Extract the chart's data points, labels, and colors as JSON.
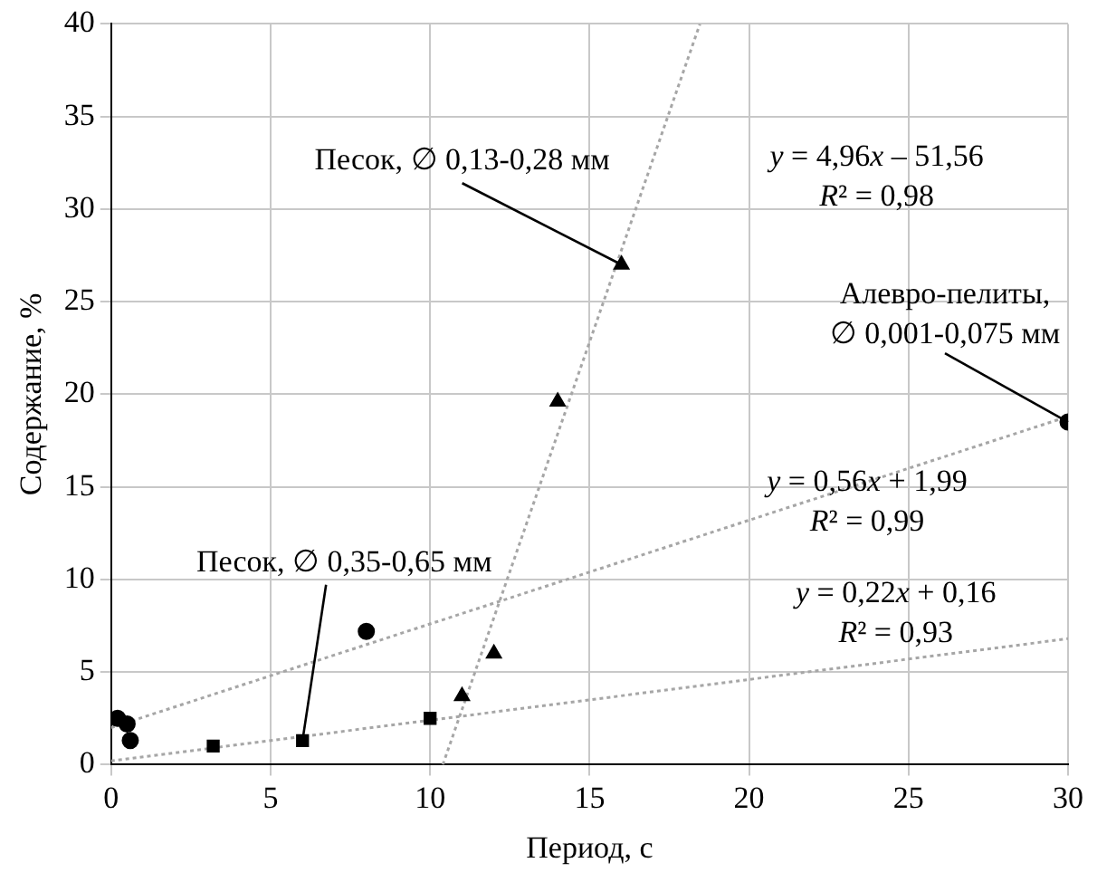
{
  "chart_data": {
    "type": "scatter",
    "xlabel": "Период, с",
    "ylabel": "Содержание, %",
    "xlim": [
      0,
      30
    ],
    "xticks": [
      0,
      5,
      10,
      15,
      20,
      25,
      30
    ],
    "ylim": [
      0,
      40
    ],
    "yticks": [
      0,
      5,
      10,
      15,
      20,
      25,
      30,
      35,
      40
    ],
    "grid": true,
    "legend": false,
    "series": [
      {
        "type": "scatter",
        "marker": "circle",
        "color": "#000000",
        "x": [
          0.2,
          0.5,
          0.6,
          8,
          30
        ],
        "values": [
          2.5,
          2.2,
          1.3,
          7.2,
          18.5
        ]
      },
      {
        "type": "scatter",
        "marker": "square",
        "color": "#000000",
        "x": [
          3.2,
          6,
          10
        ],
        "values": [
          1.0,
          1.3,
          2.5
        ]
      },
      {
        "type": "scatter",
        "marker": "triangle",
        "color": "#000000",
        "x": [
          11,
          12,
          14,
          16
        ],
        "values": [
          3.7,
          6.0,
          19.6,
          27
        ]
      },
      {
        "type": "line",
        "marker": "none",
        "line_style": "dotted",
        "color": "#a6a6a6",
        "x": [
          10.4,
          18.46
        ],
        "values": [
          0,
          40
        ]
      },
      {
        "type": "line",
        "marker": "none",
        "line_style": "dotted",
        "color": "#a6a6a6",
        "x": [
          0,
          30
        ],
        "values": [
          2.0,
          18.8
        ]
      },
      {
        "type": "line",
        "marker": "none",
        "line_style": "dotted",
        "color": "#a6a6a6",
        "x": [
          0,
          30
        ],
        "values": [
          0.2,
          6.8
        ]
      }
    ],
    "annotations": [
      {
        "text": "Песок, ∅ 0,13-0,28 мм",
        "x": 16,
        "y": 27
      },
      {
        "text": "Алевро-пелиты,\n∅ 0,001-0,075 мм",
        "x": 30,
        "y": 18.5
      },
      {
        "text": "Песок, ∅ 0,35-0,65 мм",
        "x": 6,
        "y": 1.3
      },
      "y = 4,96x – 51,56\nR² = 0,98",
      "y = 0,56x + 1,99\nR² = 0,99",
      "y = 0,22x + 0,16\nR² = 0,93"
    ]
  }
}
